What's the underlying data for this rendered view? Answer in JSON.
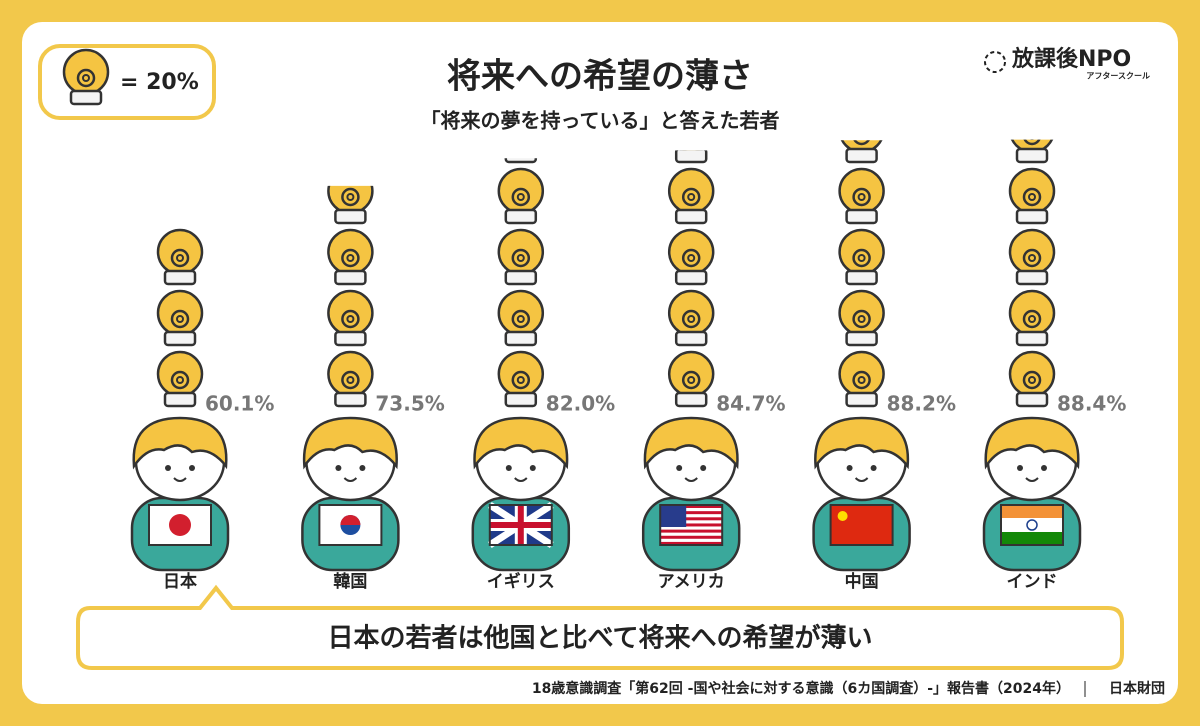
{
  "chart_data": {
    "type": "pictograph",
    "title": "将来への希望の薄さ",
    "subtitle": "「将来の夢を持っている」と答えた若者",
    "unit": 20,
    "unit_label": "= 20%",
    "categories": [
      "日本",
      "韓国",
      "イギリス",
      "アメリカ",
      "中国",
      "インド"
    ],
    "values": [
      60.1,
      73.5,
      82.0,
      84.7,
      88.2,
      88.4
    ],
    "value_labels": [
      "60.1%",
      "73.5%",
      "82.0%",
      "84.7%",
      "88.2%",
      "88.4%"
    ],
    "color": "#f5c442",
    "callout": "日本の若者は他国と比べて将来への希望が薄い",
    "logo": "放課後NPO",
    "logo_sub": "アフタースクール",
    "source": "18歳意識調査「第62回 -国や社会に対する意識（6カ国調査）-」報告書（2024年）",
    "publisher": "日本財団"
  }
}
